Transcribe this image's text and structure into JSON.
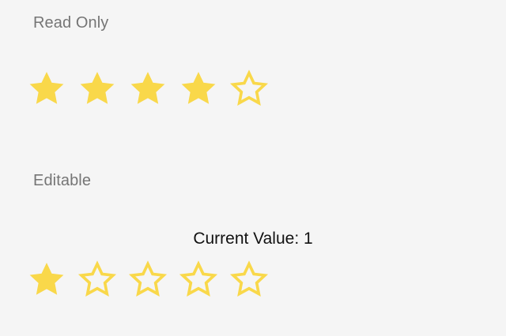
{
  "read_only": {
    "title": "Read Only",
    "rating": 4,
    "max": 5
  },
  "editable": {
    "title": "Editable",
    "current_value_text": "Current Value: 1",
    "rating": 1,
    "max": 5
  },
  "colors": {
    "star": "#f9d84a",
    "title": "#757575",
    "background": "#f5f5f5"
  },
  "icons": {
    "filled": "star-filled-icon",
    "outline": "star-outline-icon"
  }
}
